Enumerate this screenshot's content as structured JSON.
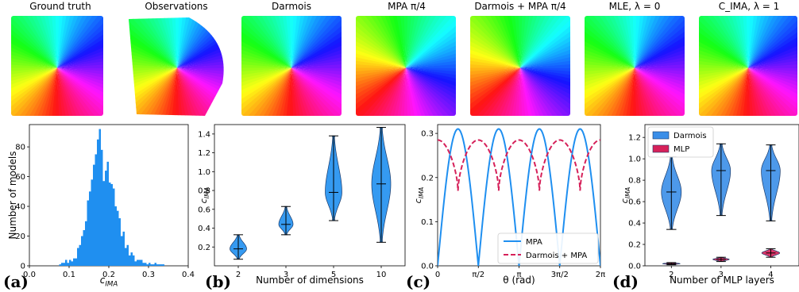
{
  "top_row": {
    "titles": [
      "Ground truth",
      "Observations",
      "Darmois",
      "MPA π/4",
      "Darmois + MPA π/4",
      "MLE, λ = 0",
      "C_IMA, λ = 1"
    ],
    "rotations_deg": [
      0,
      0,
      0,
      45,
      45,
      0,
      0
    ]
  },
  "panel_labels": [
    "(a)",
    "(b)",
    "(c)",
    "(d)"
  ],
  "chart_data": [
    {
      "id": "a",
      "type": "bar",
      "xlabel": "c_IMA",
      "ylabel": "Number of models",
      "xlim": [
        0.0,
        0.4
      ],
      "ylim": [
        0,
        95
      ],
      "xticks": [
        "0.0",
        "0.1",
        "0.2",
        "0.3",
        "0.4"
      ],
      "yticks": [
        "0",
        "20",
        "40",
        "60",
        "80"
      ],
      "bin_start": 0.075,
      "bin_width": 0.005,
      "counts": [
        1,
        2,
        2,
        4,
        2,
        4,
        3,
        5,
        5,
        12,
        14,
        20,
        24,
        30,
        44,
        50,
        58,
        68,
        75,
        85,
        92,
        78,
        57,
        64,
        70,
        56,
        55,
        52,
        40,
        37,
        32,
        20,
        23,
        12,
        14,
        7,
        9,
        7,
        3,
        4,
        4,
        4,
        2,
        2,
        1,
        2,
        1,
        1,
        2,
        1,
        1,
        1,
        1
      ],
      "color": "#1f8ff0"
    },
    {
      "id": "b",
      "type": "violin",
      "xlabel": "Number of dimensions",
      "ylabel": "c_IMA",
      "categories": [
        "2",
        "3",
        "5",
        "10"
      ],
      "ylim": [
        0.0,
        1.5
      ],
      "yticks": [
        "0.2",
        "0.4",
        "0.6",
        "0.8",
        "1.0",
        "1.2",
        "1.4"
      ],
      "violins": [
        {
          "min": 0.07,
          "max": 0.33,
          "median": 0.18,
          "width": 0.35
        },
        {
          "min": 0.33,
          "max": 0.63,
          "median": 0.44,
          "width": 0.3
        },
        {
          "min": 0.48,
          "max": 1.38,
          "median": 0.78,
          "width": 0.35
        },
        {
          "min": 0.25,
          "max": 1.47,
          "median": 0.87,
          "width": 0.4
        }
      ],
      "color": "#1f8ff0"
    },
    {
      "id": "c",
      "type": "line",
      "xlabel": "θ (rad)",
      "ylabel": "c_IMA",
      "xticks": [
        "0",
        "π/2",
        "π",
        "3π/2",
        "2π"
      ],
      "xlim": [
        0,
        6.2832
      ],
      "ylim": [
        0.0,
        0.32
      ],
      "yticks": [
        "0.0",
        "0.1",
        "0.2",
        "0.3"
      ],
      "series": [
        {
          "name": "MPA",
          "color": "#1f8ff0",
          "dash": "solid",
          "amplitude": 0.31,
          "type": "abs_sin_2theta"
        },
        {
          "name": "Darmois + MPA",
          "color": "#d6215a",
          "dash": "dashed",
          "base": 0.17,
          "peak": 0.285,
          "type": "periodic"
        }
      ],
      "legend": "bottom-right"
    },
    {
      "id": "d",
      "type": "violin",
      "xlabel": "Number of MLP layers",
      "ylabel": "c_IMA",
      "categories": [
        "2",
        "3",
        "4"
      ],
      "ylim": [
        0.0,
        1.32
      ],
      "yticks": [
        "0.0",
        "0.2",
        "0.4",
        "0.6",
        "0.8",
        "1.0",
        "1.2"
      ],
      "series": [
        {
          "name": "Darmois",
          "color": "#3a8ee8",
          "violins": [
            {
              "min": 0.34,
              "max": 1.02,
              "median": 0.69,
              "width": 0.4
            },
            {
              "min": 0.47,
              "max": 1.14,
              "median": 0.89,
              "width": 0.38
            },
            {
              "min": 0.42,
              "max": 1.13,
              "median": 0.89,
              "width": 0.38
            }
          ]
        },
        {
          "name": "MLP",
          "color": "#d6215a",
          "violins": [
            {
              "min": 0.01,
              "max": 0.03,
              "median": 0.02,
              "width": 0.35
            },
            {
              "min": 0.04,
              "max": 0.08,
              "median": 0.06,
              "width": 0.33
            },
            {
              "min": 0.08,
              "max": 0.16,
              "median": 0.12,
              "width": 0.36
            }
          ]
        }
      ],
      "legend": "top-left"
    }
  ]
}
